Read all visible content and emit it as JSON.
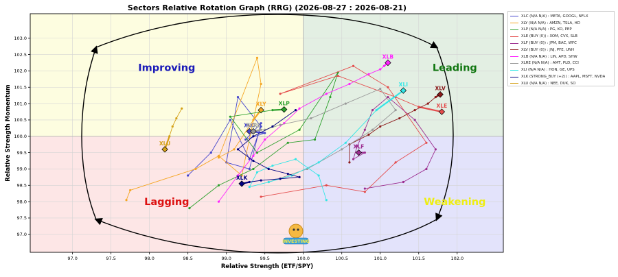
{
  "chart_data": {
    "type": "scatter",
    "title": "Sectors Relative Rotation Graph (RRG) (2026-08-27 : 2026-08-21)",
    "xlabel": "Relative Strength (ETF/SPY)",
    "ylabel": "Relative Strength Momentum",
    "xlim": [
      96.45,
      102.6
    ],
    "ylim": [
      96.45,
      103.75
    ],
    "xticks": [
      "97.0",
      "97.5",
      "98.0",
      "98.5",
      "99.0",
      "99.5",
      "100.0",
      "100.5",
      "101.0",
      "101.5",
      "102.0"
    ],
    "yticks": [
      "97.0",
      "97.5",
      "98.0",
      "98.5",
      "99.0",
      "99.5",
      "100.0",
      "100.5",
      "101.0",
      "101.5",
      "102.0",
      "102.5",
      "103.0"
    ],
    "center": [
      100,
      100
    ],
    "grid": true,
    "legend_position": "upper right, outside plot",
    "quadrants": [
      {
        "name": "Improving",
        "label_color": "#1a1ab8",
        "fill": "#fdfde0"
      },
      {
        "name": "Leading",
        "label_color": "#117711",
        "fill": "#e3efe3"
      },
      {
        "name": "Lagging",
        "label_color": "#dd1111",
        "fill": "#fde6e6"
      },
      {
        "name": "Weakening",
        "label_color": "#eeee11",
        "fill": "#e3e3fb"
      }
    ],
    "series": [
      {
        "name": "XLC",
        "legend": "XLC (N/A N/A) : META, GOOGL, NFLX",
        "color": "#4444cc",
        "x": [
          98.5,
          98.8,
          99.05,
          99.3,
          99.45,
          99.15,
          99.0,
          99.3,
          99.45,
          99.25,
          99.5,
          99.3
        ],
        "y": [
          98.8,
          99.5,
          100.5,
          99.3,
          100.3,
          101.2,
          99.2,
          99.0,
          100.4,
          99.9,
          100.1,
          100.15
        ]
      },
      {
        "name": "XLY",
        "legend": "XLY (N/A N/A) : AMZN, TSLA, HD",
        "color": "#f5a623",
        "x": [
          97.7,
          97.75,
          98.6,
          98.9,
          99.2,
          99.45,
          99.4,
          98.9,
          99.1,
          99.45,
          99.35,
          99.45
        ],
        "y": [
          98.05,
          98.35,
          99.0,
          99.4,
          98.8,
          101.6,
          102.4,
          99.35,
          99.6,
          100.85,
          100.5,
          100.8
        ]
      },
      {
        "name": "XLP",
        "legend": "XLP (N/A N/A) : PG, KO, PEP",
        "color": "#2ca02c",
        "x": [
          98.52,
          98.9,
          99.35,
          99.8,
          100.15,
          100.35,
          100.45,
          99.95,
          99.4,
          99.05,
          99.6,
          99.75
        ],
        "y": [
          97.8,
          98.5,
          99.0,
          99.8,
          99.9,
          101.2,
          101.95,
          100.2,
          99.5,
          100.6,
          100.8,
          100.82
        ]
      },
      {
        "name": "XLE",
        "legend": "XLE (BUY (0)) : XOM, CVX, SLB",
        "color": "#e44c4c",
        "x": [
          99.45,
          100.3,
          100.8,
          101.2,
          101.6,
          101.1,
          100.65,
          99.7,
          100.45,
          101.2,
          101.5,
          101.8
        ],
        "y": [
          98.15,
          98.5,
          98.3,
          99.2,
          99.8,
          101.5,
          102.15,
          101.3,
          101.85,
          101.2,
          100.9,
          100.75
        ]
      },
      {
        "name": "XLF",
        "legend": "XLF (BUY (0)) : JPM, BAC, WFC",
        "color": "#9b2c8f",
        "x": [
          100.8,
          101.3,
          101.6,
          101.72,
          101.45,
          101.1,
          100.9,
          100.8,
          100.7,
          100.65,
          100.8,
          100.72
        ],
        "y": [
          98.4,
          98.6,
          99.0,
          99.6,
          100.5,
          101.2,
          100.8,
          100.2,
          99.7,
          99.3,
          99.5,
          99.5
        ]
      },
      {
        "name": "XLV",
        "legend": "XLV (BUY (0)) : JNJ, PFE, UNH",
        "color": "#8b1a1a",
        "x": [
          100.6,
          100.6,
          100.85,
          101.0,
          101.25,
          101.45,
          101.62,
          101.72,
          101.78,
          101.75,
          101.72,
          101.78
        ],
        "y": [
          99.2,
          99.75,
          100.05,
          100.3,
          100.55,
          100.8,
          101.0,
          101.2,
          101.3,
          101.25,
          101.2,
          101.28
        ]
      },
      {
        "name": "XLB",
        "legend": "XLB (N/A N/A) : LIN, APD, SHW",
        "color": "#ff22ff",
        "x": [
          98.9,
          99.15,
          99.35,
          99.5,
          99.75,
          99.95,
          100.3,
          100.6,
          100.85,
          101.0,
          101.05,
          101.1
        ],
        "y": [
          98.0,
          98.8,
          99.4,
          99.9,
          100.4,
          100.85,
          101.3,
          101.6,
          101.9,
          102.05,
          102.15,
          102.25
        ]
      },
      {
        "name": "XLRE",
        "legend": "XLRE (N/A N/A) : AMT, PLD, CCI",
        "color": "#999999",
        "x": [
          99.55,
          100.05,
          100.5,
          100.9,
          101.2,
          101.0,
          100.55,
          100.1,
          99.7,
          99.5,
          99.45,
          99.35
        ],
        "y": [
          98.6,
          99.0,
          99.6,
          100.2,
          100.8,
          101.45,
          101.0,
          100.55,
          100.35,
          100.2,
          100.2,
          100.15
        ]
      },
      {
        "name": "XLI",
        "legend": "XLI (N/A N/A) : HON, GE, UPS",
        "color": "#33e6e6",
        "x": [
          100.3,
          100.2,
          99.9,
          99.6,
          99.4,
          99.3,
          99.55,
          99.85,
          100.2,
          100.55,
          100.95,
          101.3
        ],
        "y": [
          98.05,
          98.8,
          99.3,
          99.1,
          98.9,
          98.45,
          98.6,
          98.8,
          99.2,
          99.8,
          100.8,
          101.4
        ]
      },
      {
        "name": "XLK",
        "legend": "XLK (STRONG_BUY (+2)) : AAPL, MSFT, NVDA",
        "color": "#000080",
        "x": [
          99.9,
          99.6,
          99.35,
          99.15,
          99.35,
          99.55,
          99.8,
          99.95,
          99.7,
          99.45,
          99.3,
          99.2
        ],
        "y": [
          100.8,
          100.3,
          100.0,
          99.6,
          99.25,
          99.0,
          98.85,
          98.75,
          98.7,
          98.65,
          98.6,
          98.55
        ]
      },
      {
        "name": "XLU",
        "legend": "XLU (N/A N/A) : NEE, DUK, SO",
        "color": "#d4a017",
        "x": [
          98.42,
          98.35,
          98.3,
          98.26,
          98.2
        ],
        "y": [
          100.85,
          100.55,
          100.3,
          100.0,
          99.6
        ]
      }
    ],
    "watermark_label": "INVESTING"
  }
}
